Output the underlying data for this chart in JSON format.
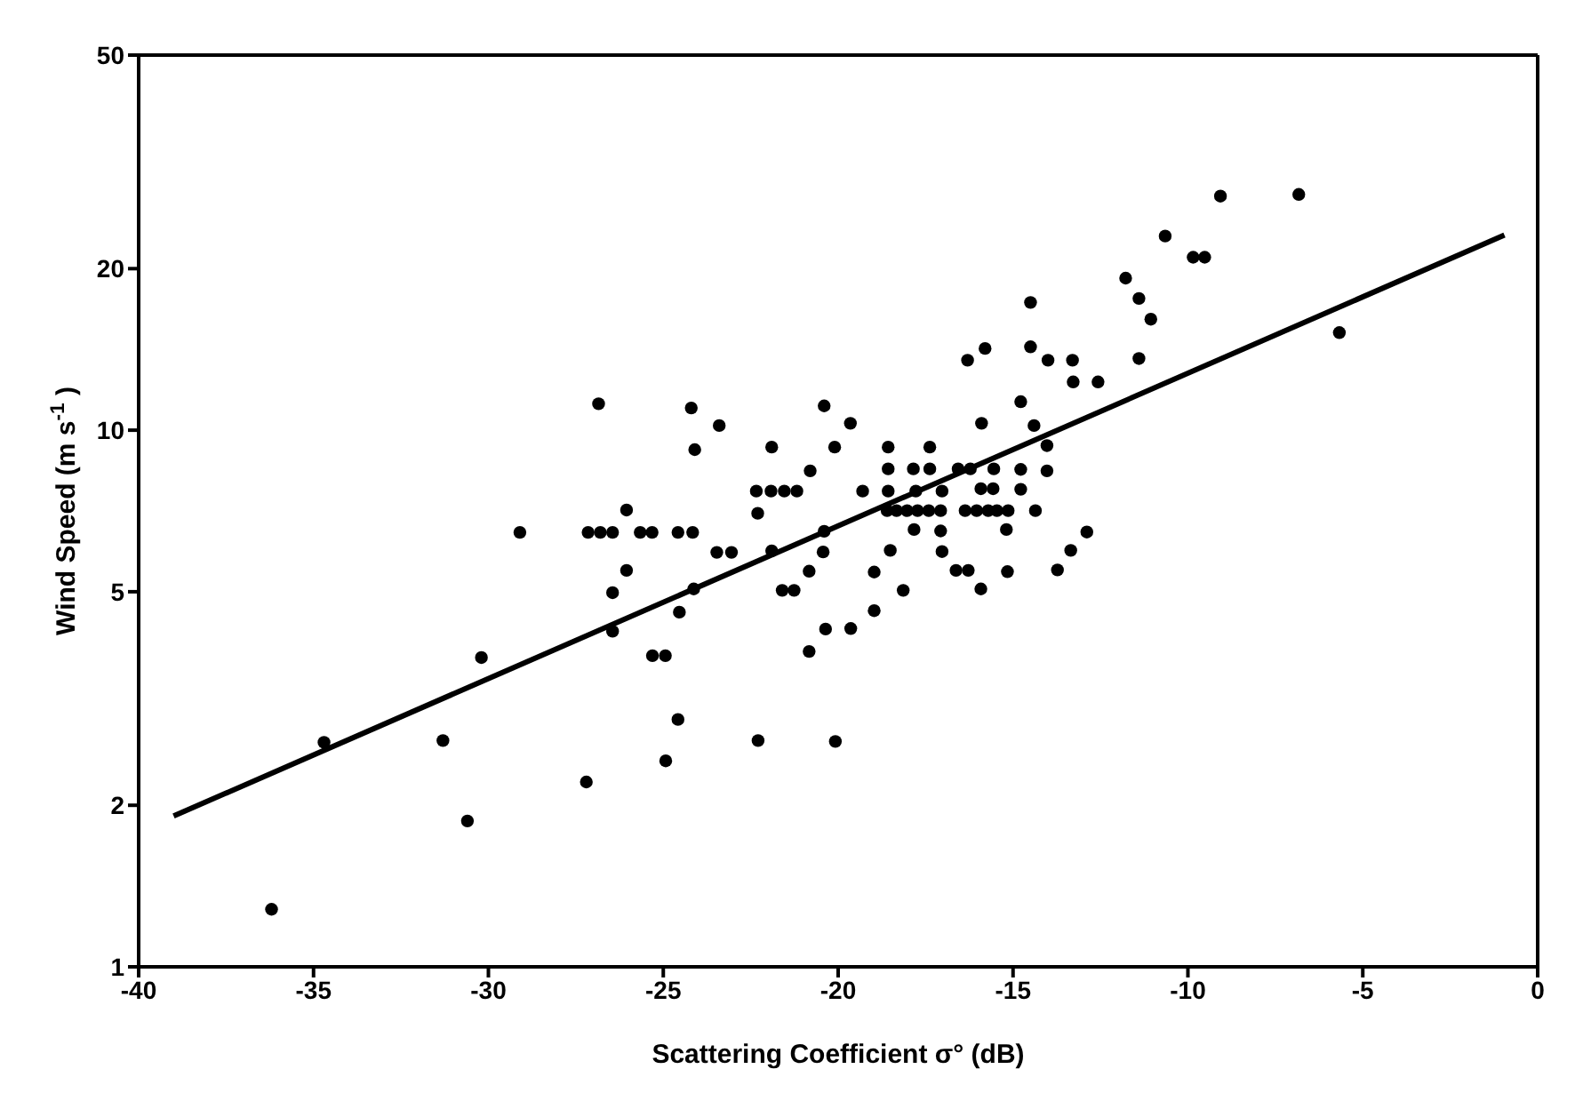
{
  "chart_data": {
    "type": "scatter",
    "xlabel": "Scattering Coefficient σ° (dB)",
    "ylabel": "Wind Speed (m s$^{-1}$)",
    "xlim": [
      -40,
      0
    ],
    "xticks": [
      -40,
      -35,
      -30,
      -25,
      -20,
      -15,
      -10,
      -5,
      0
    ],
    "ylim": [
      1,
      50
    ],
    "yticks": [
      1,
      2,
      5,
      10,
      20,
      50
    ],
    "log": "y",
    "grid": false,
    "legend": false,
    "series": [
      {
        "type": "scatter",
        "color": "#000000",
        "marker": "circle",
        "x": [
          -36.2,
          -34.7,
          -31.3,
          -30.6,
          -30.2,
          -29.1,
          -27.2,
          -26.85,
          -27.15,
          -26.8,
          -26.45,
          -26.05,
          -26.05,
          -26.45,
          -26.45,
          -25.66,
          -25.32,
          -25.31,
          -24.94,
          -24.58,
          -24.16,
          -24.2,
          -24.1,
          -24.13,
          -24.54,
          -24.58,
          -24.93,
          -23.4,
          -23.47,
          -23.05,
          -22.34,
          -21.92,
          -21.54,
          -21.18,
          -22.3,
          -21.9,
          -21.9,
          -21.6,
          -21.26,
          -22.29,
          -20.8,
          -20.4,
          -20.4,
          -20.43,
          -20.83,
          -20.83,
          -20.36,
          -20.1,
          -20.08,
          -19.65,
          -19.64,
          -19.3,
          -18.97,
          -18.97,
          -18.57,
          -18.57,
          -18.57,
          -18.6,
          -18.33,
          -18.03,
          -17.73,
          -17.41,
          -17.07,
          -18.51,
          -18.14,
          -17.85,
          -17.38,
          -17.38,
          -17.78,
          -17.03,
          -17.83,
          -17.07,
          -17.03,
          -16.57,
          -16.22,
          -15.55,
          -16.63,
          -16.28,
          -16.3,
          -15.8,
          -15.9,
          -15.92,
          -15.57,
          -16.37,
          -16.04,
          -15.71,
          -15.46,
          -15.14,
          -15.19,
          -15.16,
          -15.92,
          -14.78,
          -14.4,
          -14.03,
          -14.78,
          -14.03,
          -14.78,
          -14.36,
          -14.5,
          -14.5,
          -14.0,
          -13.3,
          -13.28,
          -12.57,
          -13.73,
          -13.35,
          -12.89,
          -11.4,
          -11.78,
          -11.4,
          -11.06,
          -10.65,
          -9.85,
          -9.52,
          -9.07,
          -6.83,
          -5.67
        ],
        "values": [
          1.28,
          2.62,
          2.64,
          1.87,
          3.77,
          6.45,
          2.21,
          11.2,
          6.45,
          6.45,
          6.45,
          7.1,
          5.48,
          4.98,
          4.22,
          6.45,
          6.45,
          3.8,
          3.8,
          6.45,
          6.45,
          11.0,
          9.2,
          5.06,
          4.58,
          2.89,
          2.42,
          10.2,
          5.92,
          5.92,
          7.7,
          7.7,
          7.7,
          7.7,
          7.0,
          9.3,
          5.96,
          5.03,
          5.03,
          2.64,
          8.4,
          11.1,
          6.48,
          5.93,
          5.46,
          3.87,
          4.26,
          9.3,
          2.63,
          10.3,
          4.27,
          7.7,
          5.44,
          4.61,
          9.3,
          8.47,
          7.7,
          7.08,
          7.08,
          7.08,
          7.08,
          7.08,
          7.08,
          5.97,
          5.03,
          8.47,
          8.47,
          9.3,
          7.7,
          7.7,
          6.53,
          6.49,
          5.94,
          8.47,
          8.47,
          8.47,
          5.48,
          5.48,
          13.5,
          14.2,
          10.3,
          7.78,
          7.78,
          7.08,
          7.08,
          7.08,
          7.08,
          7.08,
          6.53,
          5.45,
          5.06,
          11.3,
          10.2,
          9.36,
          8.45,
          8.4,
          7.76,
          7.08,
          17.3,
          14.3,
          13.5,
          13.5,
          12.3,
          12.3,
          5.49,
          5.97,
          6.46,
          13.6,
          19.2,
          17.6,
          16.1,
          23.0,
          21.0,
          21.0,
          27.3,
          27.5,
          15.2
        ]
      },
      {
        "type": "line",
        "color": "#000000",
        "line_style": "solid",
        "x": [
          -39.0,
          -0.95
        ],
        "values": [
          1.91,
          23.1
        ]
      }
    ]
  }
}
